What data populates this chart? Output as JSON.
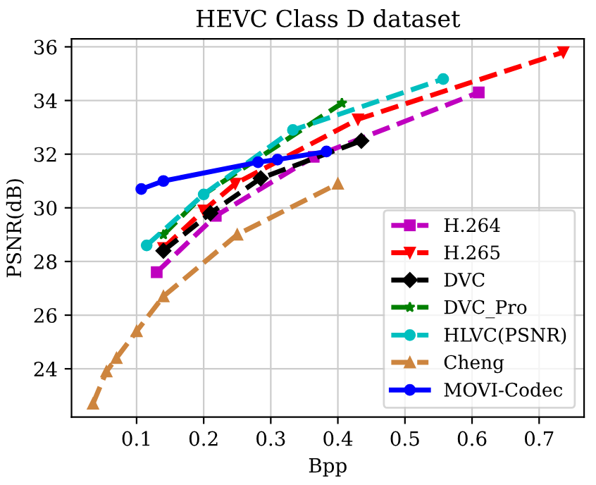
{
  "chart_data": {
    "type": "line",
    "title": "HEVC Class D dataset",
    "xlabel": "Bpp",
    "ylabel": "PSNR(dB)",
    "xlim": [
      0.003,
      0.767
    ],
    "ylim": [
      22.2,
      36.3
    ],
    "xticks": [
      0.1,
      0.2,
      0.3,
      0.4,
      0.5,
      0.6,
      0.7
    ],
    "yticks": [
      24,
      26,
      28,
      30,
      32,
      34,
      36
    ],
    "grid": true,
    "legend": "bottom right",
    "series": [
      {
        "name": "H.264",
        "color": "#bf00bf",
        "marker": "square",
        "line_style": "dashed",
        "x": [
          0.13,
          0.218,
          0.364,
          0.61
        ],
        "values": [
          27.6,
          29.7,
          31.9,
          34.3
        ]
      },
      {
        "name": "H.265",
        "color": "#ff0000",
        "marker": "triangle_down",
        "line_style": "dashed",
        "x": [
          0.14,
          0.2,
          0.247,
          0.43,
          0.736
        ],
        "values": [
          28.5,
          29.9,
          30.9,
          33.3,
          35.8
        ]
      },
      {
        "name": "DVC",
        "color": "#000000",
        "marker": "diamond",
        "line_style": "dashed",
        "x": [
          0.14,
          0.21,
          0.285,
          0.435
        ],
        "values": [
          28.4,
          29.8,
          31.1,
          32.5
        ]
      },
      {
        "name": "DVC_Pro",
        "color": "#008000",
        "marker": "star",
        "line_style": "dashed",
        "x": [
          0.14,
          0.2,
          0.406
        ],
        "values": [
          29.0,
          30.5,
          33.9
        ]
      },
      {
        "name": "HLVC(PSNR)",
        "color": "#00bfbf",
        "marker": "circle",
        "line_style": "dashed",
        "x": [
          0.115,
          0.2,
          0.333,
          0.557
        ],
        "values": [
          28.6,
          30.5,
          32.9,
          34.8
        ]
      },
      {
        "name": "Cheng",
        "color": "#cd853f",
        "marker": "triangle",
        "line_style": "dashed",
        "x": [
          0.035,
          0.055,
          0.07,
          0.1,
          0.14,
          0.25,
          0.4
        ],
        "values": [
          22.7,
          23.9,
          24.4,
          25.4,
          26.7,
          29.0,
          30.9
        ]
      },
      {
        "name": "MOVI-Codec",
        "color": "#0000ff",
        "marker": "circle",
        "line_style": "solid",
        "x": [
          0.107,
          0.14,
          0.281,
          0.31,
          0.383
        ],
        "values": [
          30.7,
          31.0,
          31.7,
          31.8,
          32.1
        ]
      }
    ]
  }
}
